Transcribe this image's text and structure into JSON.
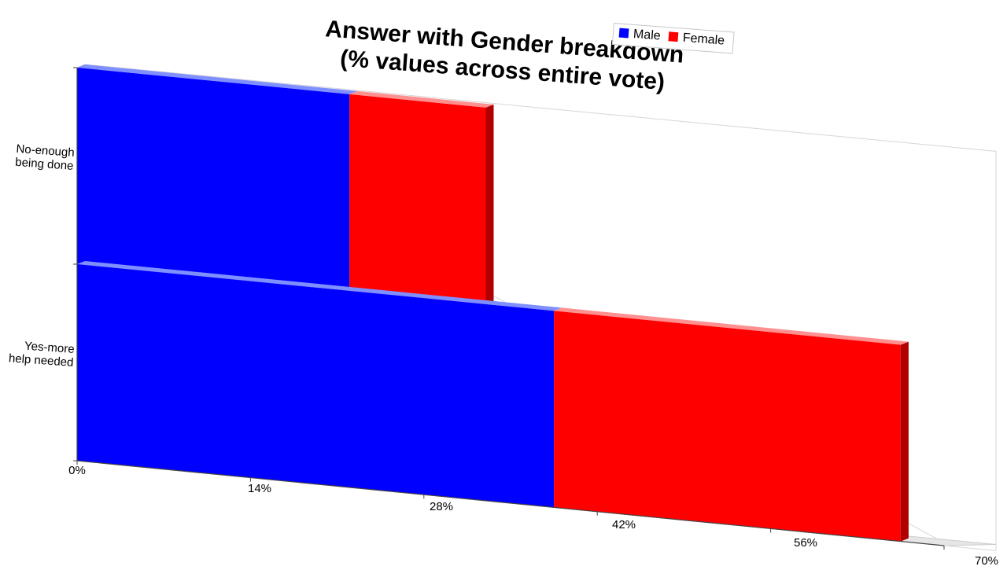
{
  "chart_data": {
    "type": "bar",
    "orientation": "horizontal",
    "stacked": true,
    "three_d": true,
    "title": "Answer with Gender breakdown\n(% values across entire vote)",
    "title_lines": [
      "Answer with Gender breakdown",
      "(% values across entire vote)"
    ],
    "categories": [
      "No-enough being done",
      "Yes-more help needed"
    ],
    "category_lines": [
      [
        "No-enough",
        "being done"
      ],
      [
        "Yes-more",
        "help needed"
      ]
    ],
    "series": [
      {
        "name": "Male",
        "values": [
          22,
          38.5
        ],
        "color": "#0000ff"
      },
      {
        "name": "Female",
        "values": [
          11,
          28
        ],
        "color": "#ff0000"
      }
    ],
    "xlim": [
      0,
      70
    ],
    "x_ticks": [
      "0%",
      "14%",
      "28%",
      "42%",
      "56%",
      "70%"
    ],
    "x_tick_values": [
      0,
      14,
      28,
      42,
      56,
      70
    ],
    "legend": "top-right",
    "grid": false
  }
}
